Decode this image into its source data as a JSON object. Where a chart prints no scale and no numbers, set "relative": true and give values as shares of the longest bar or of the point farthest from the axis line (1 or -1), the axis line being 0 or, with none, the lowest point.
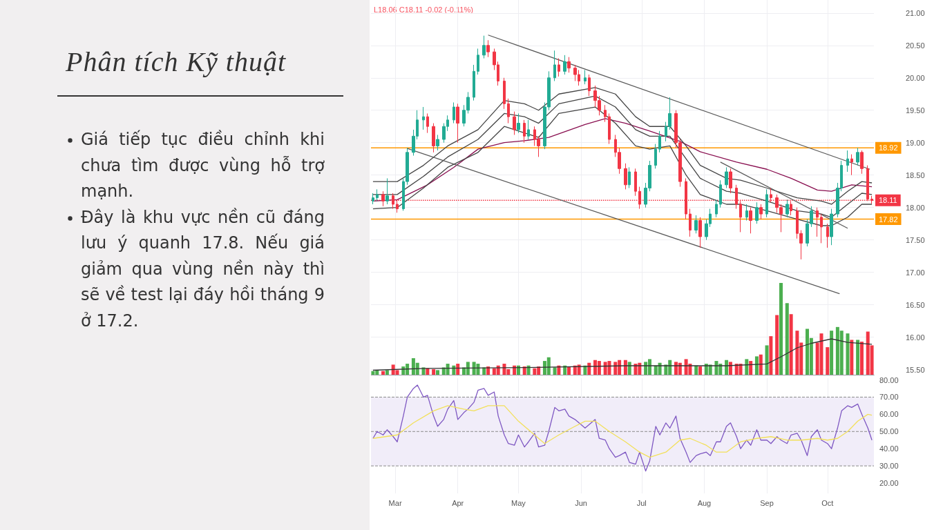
{
  "chart_data": [
    {
      "type": "other",
      "title": "Phân tích Kỹ thuật",
      "annotations": [
        "Giá tiếp tục điều chỉnh khi chưa tìm được vùng hỗ trợ mạnh.",
        "Đây là khu vực nền cũ đáng lưu ý quanh 17.8. Nếu giá giảm qua vùng nền này thì sẽ về test lại đáy hồi tháng 9 ở 17.2."
      ]
    },
    {
      "type": "candlestick",
      "annotations": [
        "L18.06 C18.11 -0.02 (-0.11%)"
      ],
      "x": [
        "--02-18",
        "--02-20",
        "--02-23",
        "--02-25",
        "--02-28",
        "--03-02",
        "--03-05",
        "--03-07",
        "--03-10",
        "--03-12",
        "--03-15",
        "--03-17",
        "--03-20",
        "--03-22",
        "--03-25",
        "--03-27",
        "--03-30",
        "--04-01",
        "--04-04",
        "--04-06",
        "--04-09",
        "--04-11",
        "--04-14",
        "--04-16",
        "--04-19",
        "--04-21",
        "--04-24",
        "--04-26",
        "--04-29",
        "--05-01",
        "--05-04",
        "--05-06",
        "--05-09",
        "--05-11",
        "--05-14",
        "--05-16",
        "--05-19",
        "--05-21",
        "--05-24",
        "--05-26",
        "--05-29",
        "--05-31",
        "--06-03",
        "--06-05",
        "--06-08",
        "--06-10",
        "--06-13",
        "--06-15",
        "--06-18",
        "--06-20",
        "--06-23",
        "--06-25",
        "--06-28",
        "--06-30",
        "--07-03",
        "--07-05",
        "--07-08",
        "--07-10",
        "--07-13",
        "--07-15",
        "--07-18",
        "--07-20",
        "--07-23",
        "--07-25",
        "--07-28",
        "--07-30",
        "--08-02",
        "--08-04",
        "--08-07",
        "--08-09",
        "--08-12",
        "--08-14",
        "--08-17",
        "--08-19",
        "--08-22",
        "--08-24",
        "--08-27",
        "--08-29",
        "--09-01",
        "--09-03",
        "--09-06",
        "--09-08",
        "--09-11",
        "--09-13",
        "--09-16",
        "--09-18",
        "--09-21",
        "--09-23",
        "--09-26",
        "--09-28",
        "--10-01",
        "--10-03",
        "--10-06",
        "--10-08",
        "--10-11",
        "--10-13",
        "--10-16",
        "--10-18",
        "--10-21",
        "--10-23"
      ],
      "ohlc": [
        [
          18.1,
          18.22,
          18.05,
          18.15
        ],
        [
          18.15,
          18.28,
          18.1,
          18.2
        ],
        [
          18.2,
          18.25,
          18.02,
          18.1
        ],
        [
          18.1,
          18.45,
          18.05,
          18.18
        ],
        [
          18.18,
          18.22,
          17.98,
          18.05
        ],
        [
          18.05,
          18.12,
          17.92,
          17.98
        ],
        [
          17.98,
          18.45,
          17.95,
          18.4
        ],
        [
          18.4,
          18.92,
          18.35,
          18.85
        ],
        [
          18.85,
          19.2,
          18.8,
          19.1
        ],
        [
          19.1,
          19.5,
          19.05,
          19.35
        ],
        [
          19.35,
          19.55,
          19.2,
          19.4
        ],
        [
          19.4,
          19.45,
          19.15,
          19.25
        ],
        [
          19.25,
          19.3,
          18.85,
          18.95
        ],
        [
          18.95,
          19.12,
          18.88,
          19.05
        ],
        [
          19.05,
          19.3,
          19.0,
          19.25
        ],
        [
          19.25,
          19.42,
          19.18,
          19.35
        ],
        [
          19.35,
          19.62,
          19.3,
          19.55
        ],
        [
          19.55,
          19.6,
          19.0,
          19.3
        ],
        [
          19.3,
          19.58,
          19.25,
          19.5
        ],
        [
          19.5,
          19.78,
          19.45,
          19.7
        ],
        [
          19.7,
          20.2,
          19.65,
          20.1
        ],
        [
          20.1,
          20.45,
          20.05,
          20.35
        ],
        [
          20.35,
          20.65,
          20.3,
          20.5
        ],
        [
          20.5,
          20.58,
          20.32,
          20.4
        ],
        [
          20.4,
          20.45,
          20.12,
          20.2
        ],
        [
          20.2,
          20.25,
          19.88,
          19.95
        ],
        [
          19.95,
          20.0,
          19.52,
          19.6
        ],
        [
          19.6,
          19.68,
          19.3,
          19.4
        ],
        [
          19.4,
          19.48,
          19.12,
          19.2
        ],
        [
          19.2,
          19.45,
          19.15,
          19.3
        ],
        [
          19.3,
          19.35,
          19.0,
          19.1
        ],
        [
          19.1,
          19.35,
          19.05,
          19.2
        ],
        [
          19.2,
          19.25,
          18.95,
          19.05
        ],
        [
          19.05,
          19.1,
          18.78,
          18.95
        ],
        [
          18.95,
          19.62,
          18.9,
          19.55
        ],
        [
          19.55,
          20.1,
          19.5,
          20.0
        ],
        [
          20.0,
          20.42,
          19.95,
          20.2
        ],
        [
          20.2,
          20.3,
          20.02,
          20.1
        ],
        [
          20.1,
          20.35,
          20.05,
          20.25
        ],
        [
          20.25,
          20.32,
          20.08,
          20.15
        ],
        [
          20.15,
          20.2,
          19.95,
          20.05
        ],
        [
          20.05,
          20.12,
          19.88,
          19.95
        ],
        [
          19.95,
          20.12,
          19.9,
          20.0
        ],
        [
          20.0,
          20.05,
          19.72,
          19.8
        ],
        [
          19.8,
          19.88,
          19.55,
          19.65
        ],
        [
          19.65,
          19.72,
          19.42,
          19.5
        ],
        [
          19.5,
          19.58,
          19.32,
          19.4
        ],
        [
          19.4,
          19.45,
          18.98,
          19.05
        ],
        [
          19.05,
          19.12,
          18.78,
          18.85
        ],
        [
          18.85,
          18.92,
          18.52,
          18.6
        ],
        [
          18.6,
          18.68,
          18.28,
          18.35
        ],
        [
          18.35,
          18.62,
          18.3,
          18.55
        ],
        [
          18.55,
          18.6,
          18.18,
          18.25
        ],
        [
          18.25,
          18.32,
          17.98,
          18.05
        ],
        [
          18.05,
          18.38,
          18.0,
          18.3
        ],
        [
          18.3,
          18.72,
          18.25,
          18.65
        ],
        [
          18.65,
          18.98,
          18.6,
          18.9
        ],
        [
          18.9,
          19.18,
          18.85,
          19.1
        ],
        [
          19.1,
          19.32,
          19.02,
          19.25
        ],
        [
          19.25,
          19.7,
          19.2,
          19.45
        ],
        [
          19.45,
          19.5,
          18.92,
          19.0
        ],
        [
          19.0,
          19.05,
          18.32,
          18.4
        ],
        [
          18.4,
          18.45,
          17.82,
          17.9
        ],
        [
          17.9,
          17.98,
          17.55,
          17.65
        ],
        [
          17.65,
          17.88,
          17.6,
          17.8
        ],
        [
          17.8,
          17.85,
          17.38,
          17.55
        ],
        [
          17.55,
          17.82,
          17.5,
          17.75
        ],
        [
          17.75,
          17.98,
          17.7,
          17.9
        ],
        [
          17.9,
          18.12,
          17.85,
          18.05
        ],
        [
          18.05,
          18.42,
          18.0,
          18.35
        ],
        [
          18.35,
          18.62,
          18.3,
          18.55
        ],
        [
          18.55,
          18.6,
          18.22,
          18.3
        ],
        [
          18.3,
          18.35,
          17.98,
          18.05
        ],
        [
          18.05,
          18.1,
          17.62,
          17.85
        ],
        [
          17.85,
          18.05,
          17.8,
          17.95
        ],
        [
          17.95,
          18.0,
          17.6,
          17.8
        ],
        [
          17.8,
          18.08,
          17.75,
          18.0
        ],
        [
          18.0,
          18.05,
          17.82,
          17.9
        ],
        [
          17.9,
          18.28,
          17.85,
          18.2
        ],
        [
          18.2,
          18.3,
          18.08,
          18.15
        ],
        [
          18.15,
          18.2,
          17.92,
          18.0
        ],
        [
          18.0,
          18.05,
          17.62,
          17.9
        ],
        [
          17.9,
          18.12,
          17.85,
          18.05
        ],
        [
          18.05,
          18.1,
          17.88,
          17.95
        ],
        [
          17.95,
          18.0,
          17.52,
          17.6
        ],
        [
          17.6,
          17.65,
          17.2,
          17.45
        ],
        [
          17.45,
          17.82,
          17.4,
          17.75
        ],
        [
          17.75,
          18.02,
          17.7,
          17.95
        ],
        [
          17.95,
          18.0,
          17.55,
          17.85
        ],
        [
          17.85,
          17.9,
          17.45,
          17.7
        ],
        [
          17.7,
          17.75,
          17.38,
          17.55
        ],
        [
          17.55,
          17.98,
          17.42,
          17.9
        ],
        [
          17.9,
          18.38,
          17.85,
          18.3
        ],
        [
          18.3,
          18.72,
          18.25,
          18.65
        ],
        [
          18.65,
          18.88,
          18.55,
          18.75
        ],
        [
          18.75,
          18.82,
          18.5,
          18.7
        ],
        [
          18.7,
          18.92,
          18.65,
          18.85
        ],
        [
          18.85,
          18.88,
          18.52,
          18.6
        ],
        [
          18.6,
          18.65,
          18.1,
          18.13
        ],
        [
          18.13,
          18.18,
          18.06,
          18.11
        ]
      ],
      "colors": [
        "#22ab94",
        "#22ab94",
        "#f23645",
        "#22ab94",
        "#f23645",
        "#f23645",
        "#22ab94",
        "#22ab94",
        "#22ab94",
        "#22ab94",
        "#22ab94",
        "#f23645",
        "#f23645",
        "#22ab94",
        "#22ab94",
        "#22ab94",
        "#22ab94",
        "#f23645",
        "#22ab94",
        "#22ab94",
        "#22ab94",
        "#22ab94",
        "#22ab94",
        "#f23645",
        "#f23645",
        "#f23645",
        "#f23645",
        "#f23645",
        "#f23645",
        "#22ab94",
        "#f23645",
        "#22ab94",
        "#f23645",
        "#f23645",
        "#22ab94",
        "#22ab94",
        "#22ab94",
        "#f23645",
        "#22ab94",
        "#f23645",
        "#f23645",
        "#f23645",
        "#22ab94",
        "#f23645",
        "#f23645",
        "#f23645",
        "#f23645",
        "#f23645",
        "#f23645",
        "#f23645",
        "#f23645",
        "#22ab94",
        "#f23645",
        "#f23645",
        "#22ab94",
        "#22ab94",
        "#22ab94",
        "#22ab94",
        "#22ab94",
        "#22ab94",
        "#f23645",
        "#f23645",
        "#f23645",
        "#f23645",
        "#22ab94",
        "#f23645",
        "#22ab94",
        "#22ab94",
        "#22ab94",
        "#22ab94",
        "#22ab94",
        "#f23645",
        "#f23645",
        "#f23645",
        "#22ab94",
        "#f23645",
        "#22ab94",
        "#f23645",
        "#22ab94",
        "#f23645",
        "#f23645",
        "#f23645",
        "#22ab94",
        "#f23645",
        "#f23645",
        "#f23645",
        "#22ab94",
        "#22ab94",
        "#f23645",
        "#f23645",
        "#f23645",
        "#22ab94",
        "#22ab94",
        "#22ab94",
        "#22ab94",
        "#f23645",
        "#22ab94",
        "#f23645",
        "#f23645",
        "#f23645"
      ],
      "series": [
        {
          "type": "line",
          "color": "#880e4f",
          "x": [
            "--02-18",
            "--03-02",
            "--03-17",
            "--03-30",
            "--04-11",
            "--04-24",
            "--05-04",
            "--05-16",
            "--06-03",
            "--06-13",
            "--06-23",
            "--07-05",
            "--07-20",
            "--07-30",
            "--08-17",
            "--09-01",
            "--09-13",
            "--09-26",
            "--10-03",
            "--10-13",
            "--10-23"
          ],
          "values": [
            18.1,
            18.12,
            18.35,
            18.62,
            18.9,
            19.0,
            19.03,
            19.08,
            19.28,
            19.37,
            19.3,
            19.18,
            19.02,
            18.86,
            18.7,
            18.59,
            18.45,
            18.27,
            18.25,
            18.35,
            18.32
          ]
        },
        {
          "type": "line",
          "color": "#444444",
          "x": [
            "--02-18",
            "--03-02",
            "--03-15",
            "--03-27",
            "--04-11",
            "--04-24",
            "--05-04",
            "--05-11",
            "--05-21",
            "--06-08",
            "--06-18",
            "--06-28",
            "--07-05",
            "--07-15",
            "--07-23",
            "--07-30",
            "--08-12",
            "--08-19",
            "--09-01",
            "--09-16",
            "--09-28",
            "--10-03",
            "--10-11",
            "--10-18",
            "--10-23"
          ],
          "values": [
            18.4,
            18.4,
            18.65,
            18.95,
            19.2,
            19.65,
            19.6,
            19.5,
            19.75,
            19.85,
            19.75,
            19.4,
            19.25,
            19.25,
            18.95,
            18.65,
            18.45,
            18.42,
            18.3,
            18.15,
            18.1,
            18.05,
            18.25,
            18.4,
            18.38
          ]
        },
        {
          "type": "line",
          "color": "#444444",
          "x": [
            "--02-18",
            "--03-02",
            "--03-15",
            "--03-27",
            "--04-11",
            "--04-24",
            "--05-04",
            "--05-11",
            "--05-21",
            "--06-08",
            "--06-18",
            "--06-28",
            "--07-05",
            "--07-15",
            "--07-23",
            "--07-30",
            "--08-12",
            "--08-19",
            "--09-01",
            "--09-16",
            "--09-28",
            "--10-03",
            "--10-11",
            "--10-18",
            "--10-23"
          ],
          "values": [
            18.2,
            18.2,
            18.48,
            18.78,
            19.05,
            19.45,
            19.4,
            19.3,
            19.6,
            19.72,
            19.55,
            19.2,
            19.1,
            19.1,
            18.75,
            18.45,
            18.25,
            18.22,
            18.1,
            17.95,
            17.9,
            17.85,
            18.05,
            18.22,
            18.2
          ]
        },
        {
          "type": "line",
          "color": "#444444",
          "x": [
            "--02-18",
            "--03-02",
            "--03-15",
            "--03-27",
            "--04-11",
            "--04-24",
            "--05-04",
            "--05-11",
            "--05-21",
            "--06-08",
            "--06-18",
            "--06-28",
            "--07-05",
            "--07-15",
            "--07-23",
            "--07-30",
            "--08-12",
            "--08-19",
            "--09-01",
            "--09-16",
            "--09-28",
            "--10-03",
            "--10-11",
            "--10-18",
            "--10-23"
          ],
          "values": [
            17.98,
            18.0,
            18.3,
            18.62,
            18.85,
            19.25,
            19.15,
            19.08,
            19.45,
            19.55,
            19.3,
            18.95,
            18.9,
            18.95,
            18.5,
            18.2,
            18.05,
            18.05,
            17.95,
            17.82,
            17.72,
            17.72,
            17.85,
            18.05,
            18.05
          ]
        },
        {
          "type": "line",
          "color": "#5a5a5a",
          "x": [
            "--04-16",
            "--10-22"
          ],
          "values": [
            20.66,
            18.59
          ]
        },
        {
          "type": "line",
          "color": "#5a5a5a",
          "x": [
            "--03-07",
            "--10-07"
          ],
          "values": [
            18.91,
            16.67
          ]
        },
        {
          "type": "line",
          "color": "#5a5a5a",
          "x": [
            "--08-09",
            "--10-11"
          ],
          "values": [
            18.7,
            17.68
          ]
        }
      ],
      "xlim": [
        "--02-17",
        "--10-24"
      ],
      "xticks": [
        {
          "value": "--03-01",
          "label": null
        },
        {
          "value": "--04-01",
          "label": null
        },
        {
          "value": "--05-01",
          "label": null
        },
        {
          "value": "--06-01",
          "label": null
        },
        {
          "value": "--07-01",
          "label": null
        },
        {
          "value": "--08-01",
          "label": null
        },
        {
          "value": "--09-01",
          "label": null
        },
        {
          "value": "--10-01",
          "label": null
        }
      ],
      "ylim": [
        15.4,
        21.2
      ],
      "yticks": [
        {
          "value": 15.5,
          "label": "15.50"
        },
        {
          "value": 16,
          "label": "16.00"
        },
        {
          "value": 16.5,
          "label": "16.50"
        },
        {
          "value": 17,
          "label": "17.00"
        },
        {
          "value": 17.5,
          "label": "17.50"
        },
        {
          "value": 18,
          "label": "18.00"
        },
        {
          "value": 18.5,
          "label": "18.50"
        },
        {
          "value": 19,
          "label": "19.00"
        },
        {
          "value": 19.5,
          "label": "19.50"
        },
        {
          "value": 20,
          "label": "20.00"
        },
        {
          "value": 20.5,
          "label": "20.50"
        },
        {
          "value": 21,
          "label": "21.00"
        }
      ],
      "grid": true,
      "tick_labels": "y",
      "ref_lines": [
        {
          "axis": "y",
          "value": 18.92,
          "label": "18.92",
          "color": "#ff9800",
          "line_style": "solid"
        },
        {
          "axis": "y",
          "value": 17.82,
          "label": "17.82",
          "color": "#ff9800",
          "line_style": "solid"
        },
        {
          "axis": "y",
          "value": 18.11,
          "label": "18.11",
          "color": "#f23645",
          "line_style": "dotted"
        }
      ]
    },
    {
      "type": "bar",
      "relative": true,
      "tick_labels": false,
      "xlim": [
        "--02-17",
        "--10-24"
      ],
      "x": [
        "--02-18",
        "--02-20",
        "--02-23",
        "--02-25",
        "--02-28",
        "--03-02",
        "--03-05",
        "--03-07",
        "--03-10",
        "--03-12",
        "--03-15",
        "--03-17",
        "--03-20",
        "--03-22",
        "--03-25",
        "--03-27",
        "--03-30",
        "--04-01",
        "--04-04",
        "--04-06",
        "--04-09",
        "--04-11",
        "--04-14",
        "--04-16",
        "--04-19",
        "--04-21",
        "--04-24",
        "--04-26",
        "--04-29",
        "--05-01",
        "--05-04",
        "--05-06",
        "--05-09",
        "--05-11",
        "--05-14",
        "--05-16",
        "--05-19",
        "--05-21",
        "--05-24",
        "--05-26",
        "--05-29",
        "--05-31",
        "--06-03",
        "--06-05",
        "--06-08",
        "--06-10",
        "--06-13",
        "--06-15",
        "--06-18",
        "--06-20",
        "--06-23",
        "--06-25",
        "--06-28",
        "--06-30",
        "--07-03",
        "--07-05",
        "--07-08",
        "--07-10",
        "--07-13",
        "--07-15",
        "--07-18",
        "--07-20",
        "--07-23",
        "--07-25",
        "--07-28",
        "--07-30",
        "--08-02",
        "--08-04",
        "--08-07",
        "--08-09",
        "--08-12",
        "--08-14",
        "--08-17",
        "--08-19",
        "--08-22",
        "--08-24",
        "--08-27",
        "--08-29",
        "--09-01",
        "--09-03",
        "--09-06",
        "--09-08",
        "--09-11",
        "--09-13",
        "--09-16",
        "--09-18",
        "--09-21",
        "--09-23",
        "--09-26",
        "--09-28",
        "--10-01",
        "--10-03",
        "--10-06",
        "--10-08",
        "--10-11",
        "--10-13",
        "--10-16",
        "--10-18",
        "--10-21",
        "--10-23"
      ],
      "series": [
        {
          "values": [
            0.04,
            0.05,
            0.04,
            0.05,
            0.11,
            0.05,
            0.09,
            0.12,
            0.18,
            0.13,
            0.08,
            0.07,
            0.06,
            0.05,
            0.08,
            0.12,
            0.1,
            0.12,
            0.08,
            0.14,
            0.14,
            0.12,
            0.08,
            0.09,
            0.07,
            0.1,
            0.12,
            0.06,
            0.1,
            0.1,
            0.09,
            0.1,
            0.07,
            0.09,
            0.15,
            0.19,
            0.08,
            0.1,
            0.1,
            0.09,
            0.1,
            0.11,
            0.1,
            0.13,
            0.16,
            0.15,
            0.14,
            0.15,
            0.14,
            0.16,
            0.16,
            0.14,
            0.12,
            0.13,
            0.14,
            0.17,
            0.1,
            0.13,
            0.11,
            0.16,
            0.14,
            0.13,
            0.17,
            0.12,
            0.1,
            0.09,
            0.12,
            0.11,
            0.15,
            0.12,
            0.16,
            0.14,
            0.12,
            0.12,
            0.17,
            0.15,
            0.2,
            0.22,
            0.32,
            0.42,
            0.65,
            1.0,
            0.78,
            0.66,
            0.48,
            0.35,
            0.5,
            0.4,
            0.35,
            0.45,
            0.3,
            0.48,
            0.52,
            0.48,
            0.45,
            0.38,
            0.38,
            0.36,
            0.47,
            0.32
          ],
          "colors": [
            "#4caf50",
            "#4caf50",
            "#f23645",
            "#4caf50",
            "#f23645",
            "#f23645",
            "#4caf50",
            "#4caf50",
            "#4caf50",
            "#4caf50",
            "#4caf50",
            "#f23645",
            "#f23645",
            "#4caf50",
            "#4caf50",
            "#4caf50",
            "#4caf50",
            "#f23645",
            "#4caf50",
            "#4caf50",
            "#4caf50",
            "#4caf50",
            "#4caf50",
            "#f23645",
            "#f23645",
            "#f23645",
            "#f23645",
            "#f23645",
            "#f23645",
            "#4caf50",
            "#f23645",
            "#4caf50",
            "#f23645",
            "#f23645",
            "#4caf50",
            "#4caf50",
            "#4caf50",
            "#f23645",
            "#4caf50",
            "#f23645",
            "#f23645",
            "#f23645",
            "#4caf50",
            "#f23645",
            "#f23645",
            "#f23645",
            "#f23645",
            "#f23645",
            "#f23645",
            "#f23645",
            "#f23645",
            "#4caf50",
            "#f23645",
            "#f23645",
            "#4caf50",
            "#4caf50",
            "#4caf50",
            "#4caf50",
            "#4caf50",
            "#4caf50",
            "#f23645",
            "#f23645",
            "#f23645",
            "#f23645",
            "#4caf50",
            "#f23645",
            "#4caf50",
            "#4caf50",
            "#4caf50",
            "#4caf50",
            "#4caf50",
            "#f23645",
            "#f23645",
            "#f23645",
            "#4caf50",
            "#f23645",
            "#4caf50",
            "#f23645",
            "#4caf50",
            "#f23645",
            "#f23645",
            "#4caf50",
            "#4caf50",
            "#f23645",
            "#f23645",
            "#f23645",
            "#4caf50",
            "#4caf50",
            "#f23645",
            "#f23645",
            "#f23645",
            "#4caf50",
            "#4caf50",
            "#4caf50",
            "#4caf50",
            "#f23645",
            "#4caf50",
            "#f23645",
            "#f23645",
            "#f23645"
          ]
        }
      ]
    },
    {
      "type": "line",
      "relative": true,
      "tick_labels": false,
      "xlim": [
        "--02-17",
        "--10-24"
      ],
      "series": [
        {
          "color": "#333333",
          "x": [
            "--02-18",
            "--03-15",
            "--05-04",
            "--06-23",
            "--07-18",
            "--08-12",
            "--09-01",
            "--09-08",
            "--09-16",
            "--09-23",
            "--10-03",
            "--10-11",
            "--10-23"
          ],
          "values": [
            0.125,
            0.175,
            0.2,
            0.25,
            0.25,
            0.25,
            0.3,
            0.5,
            0.75,
            0.875,
            1,
            0.9,
            0.85
          ]
        }
      ]
    },
    {
      "type": "line",
      "xlim": [
        "--02-17",
        "--10-24"
      ],
      "x": [
        "--02-18",
        "--02-20",
        "--02-23",
        "--02-25",
        "--02-28",
        "--03-02",
        "--03-05",
        "--03-07",
        "--03-10",
        "--03-12",
        "--03-15",
        "--03-17",
        "--03-20",
        "--03-22",
        "--03-25",
        "--03-27",
        "--03-30",
        "--04-01",
        "--04-04",
        "--04-06",
        "--04-09",
        "--04-11",
        "--04-14",
        "--04-16",
        "--04-19",
        "--04-21",
        "--04-24",
        "--04-26",
        "--04-29",
        "--05-01",
        "--05-04",
        "--05-06",
        "--05-09",
        "--05-11",
        "--05-14",
        "--05-16",
        "--05-19",
        "--05-21",
        "--05-24",
        "--05-26",
        "--05-29",
        "--05-31",
        "--06-03",
        "--06-05",
        "--06-08",
        "--06-10",
        "--06-13",
        "--06-15",
        "--06-18",
        "--06-20",
        "--06-23",
        "--06-25",
        "--06-28",
        "--06-30",
        "--07-03",
        "--07-05",
        "--07-08",
        "--07-10",
        "--07-13",
        "--07-15",
        "--07-18",
        "--07-20",
        "--07-23",
        "--07-25",
        "--07-28",
        "--07-30",
        "--08-02",
        "--08-04",
        "--08-07",
        "--08-09",
        "--08-12",
        "--08-14",
        "--08-17",
        "--08-19",
        "--08-22",
        "--08-24",
        "--08-27",
        "--08-29",
        "--09-01",
        "--09-03",
        "--09-06",
        "--09-08",
        "--09-11",
        "--09-13",
        "--09-16",
        "--09-18",
        "--09-21",
        "--09-23",
        "--09-26",
        "--09-28",
        "--10-01",
        "--10-03",
        "--10-06",
        "--10-08",
        "--10-11",
        "--10-13",
        "--10-16",
        "--10-18",
        "--10-21",
        "--10-23"
      ],
      "xticks": [
        {
          "value": "--03-01",
          "label": "Mar"
        },
        {
          "value": "--04-01",
          "label": "Apr"
        },
        {
          "value": "--05-01",
          "label": "May"
        },
        {
          "value": "--06-01",
          "label": "Jun"
        },
        {
          "value": "--07-01",
          "label": "Jul"
        },
        {
          "value": "--08-01",
          "label": "Aug"
        },
        {
          "value": "--09-01",
          "label": "Sep"
        },
        {
          "value": "--10-01",
          "label": "Oct"
        }
      ],
      "ylim": [
        14,
        81
      ],
      "yticks": [
        {
          "value": 20,
          "label": "20.00"
        },
        {
          "value": 30,
          "label": "30.00"
        },
        {
          "value": 40,
          "label": "40.00"
        },
        {
          "value": 50,
          "label": "50.00"
        },
        {
          "value": 60,
          "label": "60.00"
        },
        {
          "value": 70,
          "label": "70.00"
        },
        {
          "value": 80,
          "label": "80.00"
        }
      ],
      "grid": "x",
      "series": [
        {
          "color": "#7e57c2",
          "values": [
            46,
            50,
            48,
            51,
            47,
            44,
            59,
            70,
            75,
            77,
            70,
            71,
            59,
            53,
            57,
            63,
            68,
            57,
            61,
            63,
            67,
            74,
            75,
            71,
            73,
            59,
            48,
            43,
            42,
            48,
            41,
            44,
            49,
            41,
            42,
            50,
            64,
            62,
            63,
            59,
            57,
            55,
            52,
            54,
            57,
            46,
            45,
            40,
            35,
            36,
            38,
            32,
            31,
            38,
            27,
            33,
            53,
            48,
            55,
            52,
            59,
            46,
            38,
            32,
            36,
            37,
            38,
            36,
            44,
            44,
            53,
            55,
            47,
            40,
            45,
            42,
            51,
            45,
            45,
            43,
            47,
            45,
            43,
            48,
            49,
            45,
            36,
            47,
            51,
            45,
            43,
            40,
            52,
            62,
            65,
            64,
            66,
            60,
            52,
            45
          ]
        },
        {
          "color": "#f2e05a",
          "x": [
            "--02-18",
            "--03-02",
            "--03-10",
            "--03-20",
            "--03-27",
            "--04-04",
            "--04-09",
            "--04-16",
            "--04-24",
            "--05-01",
            "--05-09",
            "--05-14",
            "--05-21",
            "--05-29",
            "--06-03",
            "--06-08",
            "--06-15",
            "--06-23",
            "--06-30",
            "--07-05",
            "--07-13",
            "--07-20",
            "--07-25",
            "--08-02",
            "--08-07",
            "--08-12",
            "--08-19",
            "--08-27",
            "--09-03",
            "--09-11",
            "--09-18",
            "--09-26",
            "--10-01",
            "--10-06",
            "--10-11",
            "--10-16",
            "--10-21",
            "--10-23"
          ],
          "values": [
            46,
            48,
            55,
            62,
            65,
            63,
            62,
            65,
            65,
            56,
            48,
            43,
            48,
            53,
            56,
            56,
            50,
            44,
            38,
            35,
            38,
            45,
            46,
            42,
            38,
            38,
            44,
            46,
            47,
            45,
            45,
            46,
            45,
            46,
            50,
            56,
            60,
            59.5
          ]
        }
      ],
      "ref_lines": [
        {
          "axis": "y",
          "value": 70,
          "color": "#8a8a8a",
          "line_style": "dashed"
        },
        {
          "axis": "y",
          "value": 50,
          "color": "#8a8a8a",
          "line_style": "dashed"
        },
        {
          "axis": "y",
          "value": 30,
          "color": "#8a8a8a",
          "line_style": "dashed"
        }
      ],
      "bands": [
        {
          "axis": "y",
          "from": 30,
          "to": 70,
          "color": "#f1edf9"
        }
      ]
    }
  ]
}
